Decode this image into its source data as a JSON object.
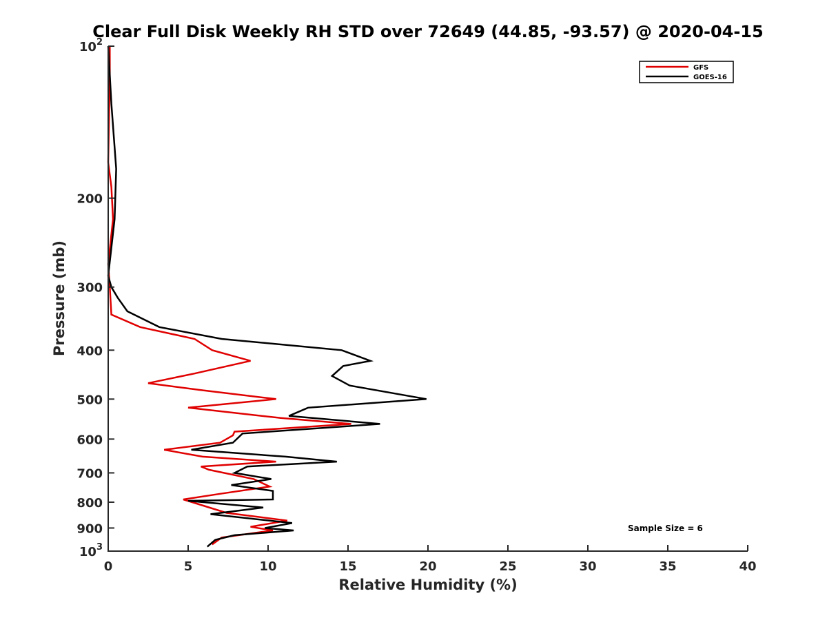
{
  "chart_data": {
    "type": "line",
    "title": "Clear Full Disk Weekly RH STD over 72649 (44.85, -93.57) @ 2020-04-15",
    "xlabel": "Relative Humidity (%)",
    "ylabel": "Pressure (mb)",
    "xlim": [
      0,
      40
    ],
    "ylim": [
      100,
      1000
    ],
    "y_scale": "log",
    "y_reversed": true,
    "grid": false,
    "legend_position": "top-right",
    "x_ticks": [
      "0",
      "5",
      "10",
      "15",
      "20",
      "25",
      "30",
      "35",
      "40"
    ],
    "x_tick_values": [
      0,
      5,
      10,
      15,
      20,
      25,
      30,
      35,
      40
    ],
    "y_ticks": [
      {
        "value": 100,
        "base": "10",
        "exp": "2"
      },
      {
        "value": 200,
        "label": "200"
      },
      {
        "value": 300,
        "label": "300"
      },
      {
        "value": 400,
        "label": "400"
      },
      {
        "value": 500,
        "label": "500"
      },
      {
        "value": 600,
        "label": "600"
      },
      {
        "value": 700,
        "label": "700"
      },
      {
        "value": 800,
        "label": "800"
      },
      {
        "value": 900,
        "label": "900"
      },
      {
        "value": 1000,
        "base": "10",
        "exp": "3"
      }
    ],
    "annotation": "Sample Size = 6",
    "series": [
      {
        "name": "GFS",
        "color": "#e00000",
        "points": [
          [
            0.1,
            100
          ],
          [
            0.1,
            115
          ],
          [
            0.0,
            170
          ],
          [
            0.2,
            190
          ],
          [
            0.3,
            220
          ],
          [
            0.0,
            270
          ],
          [
            0.1,
            300
          ],
          [
            0.2,
            340
          ],
          [
            2.0,
            360
          ],
          [
            5.4,
            380
          ],
          [
            6.5,
            400
          ],
          [
            8.9,
            420
          ],
          [
            5.4,
            445
          ],
          [
            2.5,
            465
          ],
          [
            5.8,
            480
          ],
          [
            10.5,
            500
          ],
          [
            5.0,
            520
          ],
          [
            10.8,
            545
          ],
          [
            15.2,
            560
          ],
          [
            7.9,
            580
          ],
          [
            7.8,
            590
          ],
          [
            7.0,
            610
          ],
          [
            3.5,
            630
          ],
          [
            5.9,
            650
          ],
          [
            10.5,
            665
          ],
          [
            5.8,
            680
          ],
          [
            6.3,
            690
          ],
          [
            9.1,
            720
          ],
          [
            10.1,
            745
          ],
          [
            7.0,
            770
          ],
          [
            4.7,
            790
          ],
          [
            7.4,
            840
          ],
          [
            11.2,
            870
          ],
          [
            8.9,
            895
          ],
          [
            10.3,
            910
          ],
          [
            7.1,
            940
          ],
          [
            6.5,
            970
          ]
        ]
      },
      {
        "name": "GOES-16",
        "color": "#000000",
        "points": [
          [
            0.0,
            100
          ],
          [
            0.2,
            130
          ],
          [
            0.5,
            175
          ],
          [
            0.4,
            220
          ],
          [
            0.0,
            285
          ],
          [
            0.2,
            300
          ],
          [
            0.6,
            315
          ],
          [
            1.2,
            335
          ],
          [
            3.2,
            360
          ],
          [
            7.1,
            380
          ],
          [
            14.6,
            400
          ],
          [
            16.4,
            420
          ],
          [
            14.7,
            430
          ],
          [
            14.0,
            450
          ],
          [
            15.1,
            470
          ],
          [
            19.9,
            500
          ],
          [
            12.5,
            520
          ],
          [
            11.3,
            540
          ],
          [
            17.0,
            560
          ],
          [
            8.4,
            585
          ],
          [
            7.8,
            610
          ],
          [
            5.2,
            630
          ],
          [
            11.1,
            650
          ],
          [
            14.3,
            665
          ],
          [
            8.7,
            680
          ],
          [
            7.9,
            700
          ],
          [
            10.2,
            720
          ],
          [
            7.7,
            740
          ],
          [
            10.3,
            760
          ],
          [
            10.3,
            790
          ],
          [
            5.0,
            795
          ],
          [
            9.7,
            820
          ],
          [
            6.4,
            845
          ],
          [
            11.5,
            880
          ],
          [
            9.8,
            900
          ],
          [
            11.6,
            910
          ],
          [
            7.9,
            930
          ],
          [
            6.7,
            950
          ],
          [
            6.2,
            980
          ]
        ]
      }
    ]
  }
}
